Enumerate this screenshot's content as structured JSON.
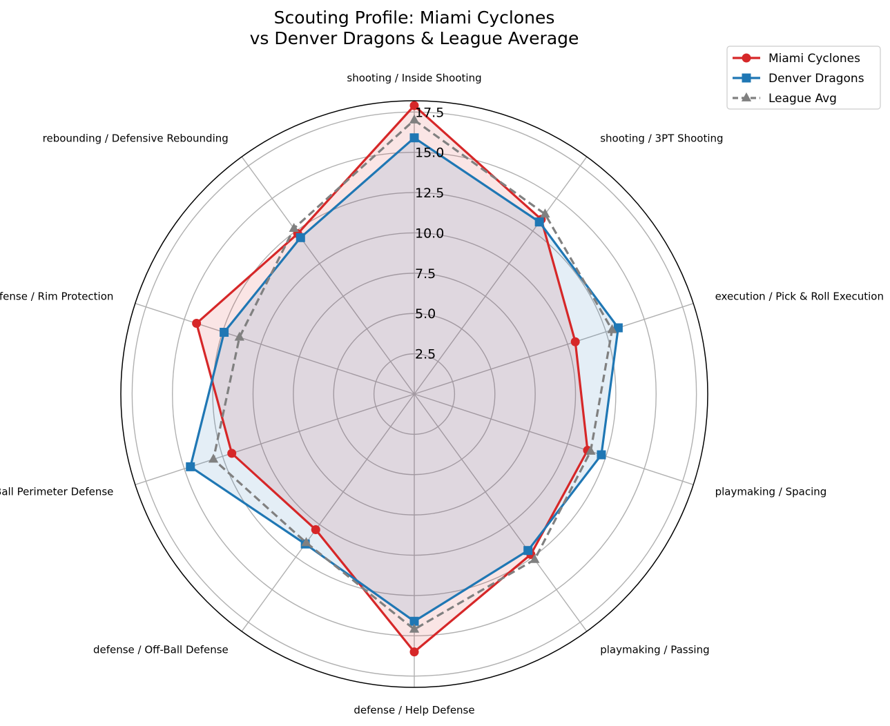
{
  "chart_data": {
    "type": "radar",
    "title_lines": [
      "Scouting Profile: Miami Cyclones",
      "vs Denver Dragons & League Average"
    ],
    "categories": [
      "shooting / Inside Shooting",
      "shooting / 3PT Shooting",
      "execution / Pick & Roll Execution",
      "playmaking / Spacing",
      "playmaking / Passing",
      "defense / Help Defense",
      "defense / Off-Ball Defense",
      "defense / On-Ball Perimeter Defense",
      "defense / Rim Protection",
      "rebounding / Defensive Rebounding"
    ],
    "r_ticks": [
      2.5,
      5.0,
      7.5,
      10.0,
      12.5,
      15.0,
      17.5
    ],
    "r_tick_labels": [
      "2.5",
      "5.0",
      "7.5",
      "10.0",
      "12.5",
      "15.0",
      "17.5"
    ],
    "rlim": [
      0,
      18.2
    ],
    "series": [
      {
        "name": "Miami Cyclones",
        "color": "#d62728",
        "marker": "circle",
        "linestyle": "solid",
        "fill": true,
        "values": [
          17.9,
          13.4,
          10.5,
          11.3,
          12.3,
          16.0,
          10.4,
          11.9,
          14.2,
          12.3
        ]
      },
      {
        "name": "Denver Dragons",
        "color": "#1f77b4",
        "marker": "square",
        "linestyle": "solid",
        "fill": true,
        "values": [
          15.9,
          13.2,
          13.3,
          12.2,
          12.0,
          14.1,
          11.5,
          14.6,
          12.4,
          12.0
        ]
      },
      {
        "name": "League Avg",
        "color": "#808080",
        "marker": "triangle",
        "linestyle": "dashed",
        "fill": false,
        "values": [
          17.0,
          13.8,
          12.9,
          11.5,
          12.7,
          14.6,
          11.4,
          13.1,
          11.4,
          12.7
        ]
      }
    ],
    "legend_position": "top-right"
  }
}
